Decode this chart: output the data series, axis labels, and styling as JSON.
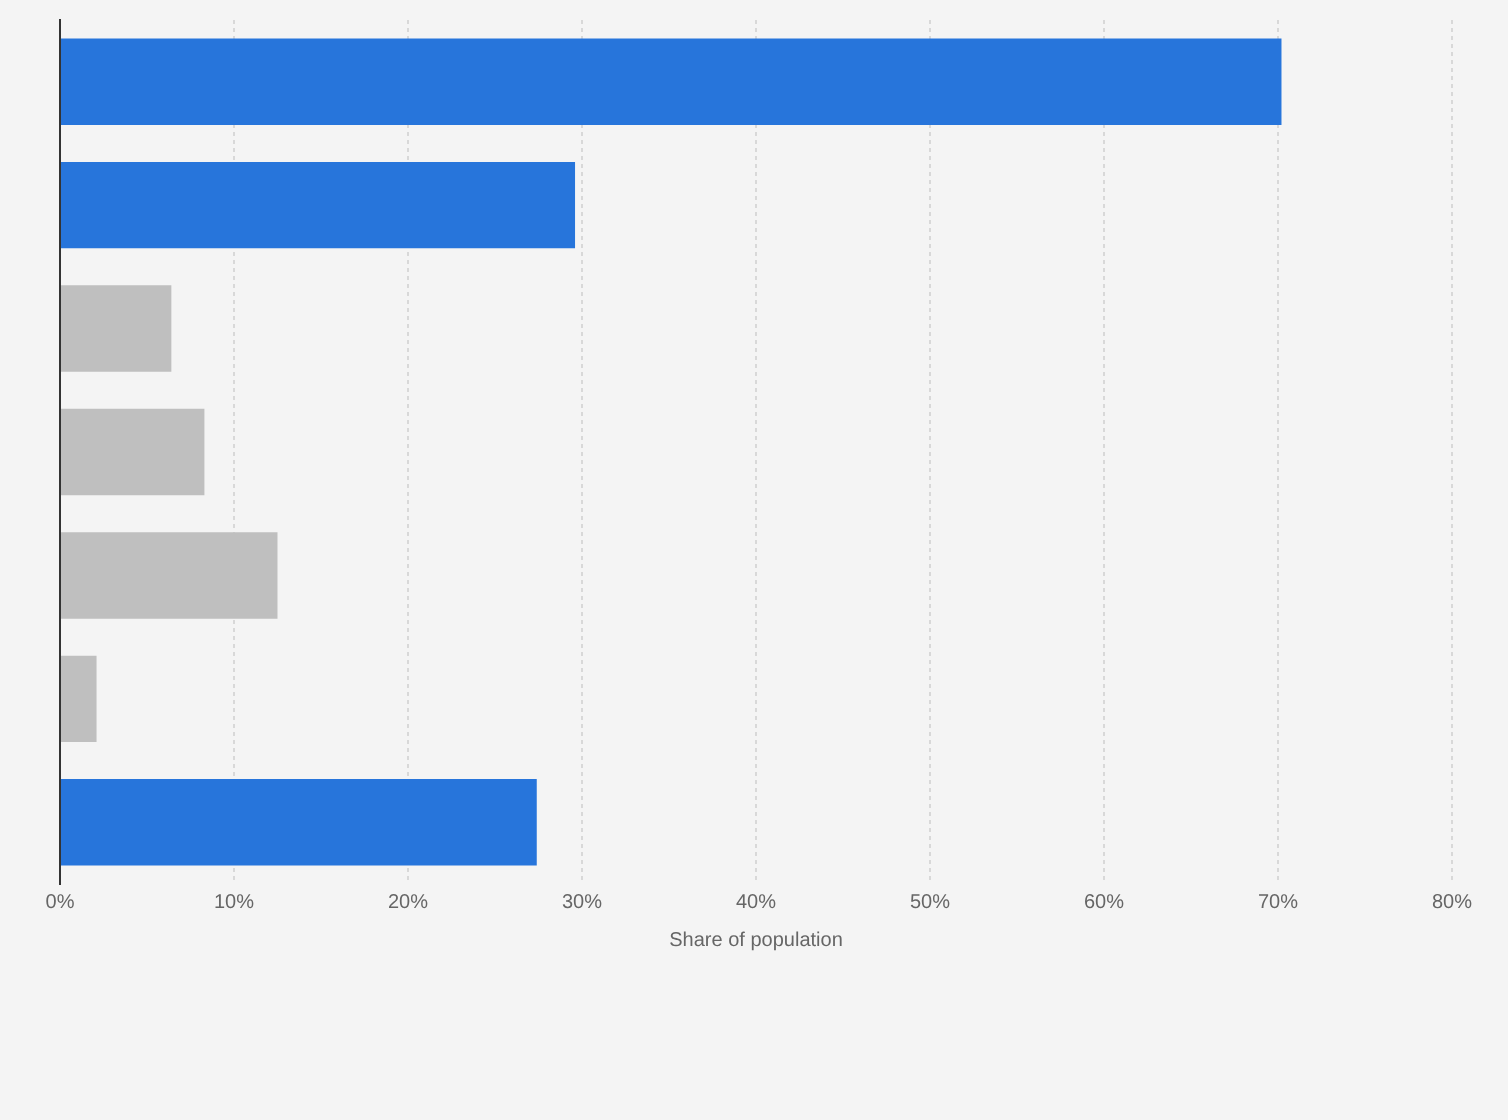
{
  "chart_data": {
    "type": "bar",
    "orientation": "horizontal",
    "xlabel": "Share of population",
    "categories": [
      null,
      null,
      null,
      null,
      null,
      null,
      null
    ],
    "values": [
      70.2,
      29.6,
      6.4,
      8.3,
      12.5,
      2.1,
      27.4
    ],
    "colors": [
      "#2775db",
      "#2775db",
      "#bfbfbf",
      "#bfbfbf",
      "#bfbfbf",
      "#bfbfbf",
      "#2775db"
    ],
    "xlim": [
      0,
      80
    ],
    "xticks": [
      {
        "value": 0,
        "label": "0%"
      },
      {
        "value": 10,
        "label": "10%"
      },
      {
        "value": 20,
        "label": "20%"
      },
      {
        "value": 30,
        "label": "30%"
      },
      {
        "value": 40,
        "label": "40%"
      },
      {
        "value": 50,
        "label": "50%"
      },
      {
        "value": 60,
        "label": "60%"
      },
      {
        "value": 70,
        "label": "70%"
      },
      {
        "value": 80,
        "label": "80%"
      }
    ],
    "grid": "x",
    "legend": false
  }
}
